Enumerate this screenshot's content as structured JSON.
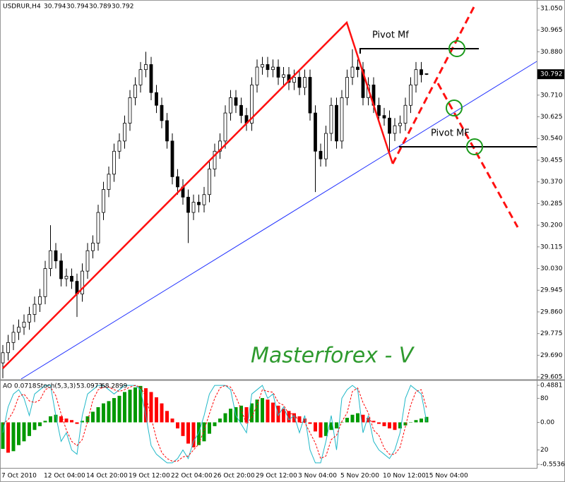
{
  "chart_data": [
    {
      "type": "candlestick",
      "title": "USDRUR,H4",
      "categories": [
        "7 Oct 2010",
        null,
        null,
        null,
        null,
        null,
        null,
        null,
        "12 Oct 04:00",
        null,
        null,
        null,
        null,
        null,
        null,
        null,
        "14 Oct 20:00",
        null,
        null,
        null,
        null,
        null,
        null,
        null,
        "19 Oct 12:00",
        null,
        null,
        null,
        null,
        null,
        null,
        null,
        "22 Oct 04:00",
        null,
        null,
        null,
        null,
        null,
        null,
        null,
        "26 Oct 20:00",
        null,
        null,
        null,
        null,
        null,
        null,
        null,
        "29 Oct 12:00",
        null,
        null,
        null,
        null,
        null,
        null,
        null,
        "3 Nov 04:00",
        null,
        null,
        null,
        null,
        null,
        null,
        null,
        "5 Nov 20:00",
        null,
        null,
        null,
        null,
        null,
        null,
        null,
        "10 Nov 12:00",
        null,
        null,
        null,
        null,
        null,
        null,
        null,
        "15 Nov 04:00"
      ],
      "open": [
        29.66,
        29.7,
        29.74,
        29.78,
        29.8,
        29.82,
        29.85,
        29.89,
        29.92,
        30.03,
        30.1,
        30.06,
        29.99,
        30.0,
        29.98,
        29.93,
        30.02,
        30.1,
        30.13,
        30.25,
        30.34,
        30.4,
        30.49,
        30.53,
        30.6,
        30.7,
        30.75,
        30.81,
        30.83,
        30.72,
        30.67,
        30.61,
        30.53,
        30.39,
        30.35,
        30.31,
        30.25,
        30.29,
        30.28,
        30.32,
        30.42,
        30.49,
        30.53,
        30.64,
        30.7,
        30.67,
        30.63,
        30.6,
        30.75,
        30.82,
        30.83,
        30.81,
        30.82,
        30.78,
        30.79,
        30.76,
        30.78,
        30.74,
        30.78,
        30.64,
        30.49,
        30.46,
        30.56,
        30.67,
        30.53,
        30.7,
        30.78,
        30.82,
        30.81,
        30.7,
        30.75,
        30.67,
        30.63,
        30.62,
        30.56,
        30.59,
        30.6,
        30.67,
        30.75,
        30.81,
        30.794
      ],
      "high": [
        29.73,
        29.77,
        29.81,
        29.83,
        29.85,
        29.88,
        29.92,
        29.95,
        30.06,
        30.2,
        30.13,
        30.09,
        30.03,
        30.03,
        30.01,
        30.05,
        30.13,
        30.16,
        30.28,
        30.37,
        30.43,
        30.52,
        30.56,
        30.63,
        30.73,
        30.78,
        30.84,
        30.88,
        30.86,
        30.75,
        30.7,
        30.64,
        30.56,
        30.42,
        30.38,
        30.34,
        30.32,
        30.32,
        30.35,
        30.45,
        30.52,
        30.56,
        30.67,
        30.73,
        30.73,
        30.7,
        30.66,
        30.78,
        30.85,
        30.86,
        30.86,
        30.85,
        30.85,
        30.82,
        30.82,
        30.81,
        30.81,
        30.81,
        30.81,
        30.67,
        30.52,
        30.59,
        30.7,
        30.7,
        30.73,
        30.81,
        30.89,
        30.85,
        30.84,
        30.78,
        30.78,
        30.7,
        30.66,
        30.65,
        30.62,
        30.63,
        30.7,
        30.78,
        30.84,
        30.84,
        30.794
      ],
      "low": [
        29.6,
        29.67,
        29.71,
        29.75,
        29.77,
        29.79,
        29.82,
        29.86,
        29.89,
        30.0,
        30.03,
        29.96,
        29.96,
        29.95,
        29.84,
        29.9,
        29.99,
        30.07,
        30.1,
        30.22,
        30.31,
        30.37,
        30.46,
        30.5,
        30.57,
        30.67,
        30.72,
        30.78,
        30.69,
        30.64,
        30.58,
        30.5,
        30.36,
        30.32,
        30.28,
        30.13,
        30.22,
        30.25,
        30.25,
        30.29,
        30.39,
        30.46,
        30.5,
        30.61,
        30.64,
        30.6,
        30.57,
        30.57,
        30.72,
        30.79,
        30.78,
        30.78,
        30.75,
        30.75,
        30.73,
        30.73,
        30.71,
        30.71,
        30.61,
        30.33,
        30.43,
        30.43,
        30.53,
        30.5,
        30.5,
        30.67,
        30.75,
        30.78,
        30.67,
        30.67,
        30.64,
        30.6,
        30.59,
        30.48,
        30.53,
        30.56,
        30.57,
        30.64,
        30.72,
        30.76,
        30.789
      ],
      "close": [
        29.7,
        29.74,
        29.78,
        29.8,
        29.82,
        29.85,
        29.89,
        29.92,
        30.03,
        30.1,
        30.06,
        29.99,
        30.0,
        29.98,
        29.93,
        30.02,
        30.1,
        30.13,
        30.25,
        30.34,
        30.4,
        30.49,
        30.53,
        30.6,
        30.7,
        30.75,
        30.81,
        30.83,
        30.72,
        30.67,
        30.61,
        30.53,
        30.39,
        30.35,
        30.31,
        30.25,
        30.29,
        30.28,
        30.32,
        30.42,
        30.49,
        30.53,
        30.64,
        30.7,
        30.67,
        30.63,
        30.6,
        30.75,
        30.82,
        30.83,
        30.81,
        30.82,
        30.78,
        30.79,
        30.76,
        30.78,
        30.74,
        30.78,
        30.64,
        30.49,
        30.46,
        30.56,
        30.67,
        30.53,
        30.7,
        30.78,
        30.82,
        30.81,
        30.7,
        30.75,
        30.67,
        30.63,
        30.62,
        30.56,
        30.59,
        30.6,
        30.67,
        30.75,
        30.81,
        30.79,
        30.792
      ],
      "ylim": [
        29.597,
        31.083
      ],
      "yticks": [
        {
          "value": 31.05,
          "label": "31.050"
        },
        30.965,
        {
          "value": 30.88,
          "label": "30.880"
        },
        {
          "value": 30.71,
          "label": "30.710"
        },
        30.625,
        {
          "value": 30.54,
          "label": "30.540"
        },
        30.455,
        {
          "value": 30.37,
          "label": "30.370"
        },
        30.285,
        {
          "value": 30.2,
          "label": "30.200"
        },
        30.115,
        {
          "value": 30.03,
          "label": "30.030"
        },
        29.945,
        {
          "value": 29.86,
          "label": "29.860"
        },
        29.775,
        {
          "value": 29.69,
          "label": "29.690"
        },
        29.605
      ],
      "annotations": [
        "Pivot Mf",
        "Pivot MF",
        "Masterforex - V"
      ]
    },
    {
      "type": "indicator",
      "ylim": [
        -0.591,
        0.544
      ],
      "yticks": [
        0.4881,
        {
          "value": 0,
          "label": "0.00"
        },
        -0.5536
      ],
      "y2lim": [
        0,
        100
      ],
      "y2ticks": [
        80,
        20
      ],
      "series": [
        {
          "name": "AO",
          "color": "#009900",
          "down_color": "#ff0000",
          "values": [
            -0.35,
            -0.4,
            -0.38,
            -0.3,
            -0.25,
            -0.18,
            -0.1,
            -0.05,
            0.02,
            0.08,
            0.1,
            0.08,
            0.05,
            0.03,
            -0.02,
            0.02,
            0.08,
            0.14,
            0.2,
            0.25,
            0.28,
            0.32,
            0.35,
            0.4,
            0.43,
            0.46,
            0.48,
            0.45,
            0.4,
            0.33,
            0.25,
            0.15,
            0.05,
            -0.08,
            -0.18,
            -0.28,
            -0.33,
            -0.3,
            -0.25,
            -0.15,
            -0.05,
            0.05,
            0.12,
            0.18,
            0.2,
            0.22,
            0.2,
            0.25,
            0.3,
            0.32,
            0.3,
            0.26,
            0.22,
            0.18,
            0.15,
            0.12,
            0.08,
            0.05,
            -0.02,
            -0.12,
            -0.2,
            -0.18,
            -0.1,
            -0.08,
            0.0,
            0.06,
            0.1,
            0.12,
            0.1,
            0.06,
            0.02,
            -0.02,
            -0.05,
            -0.08,
            -0.1,
            -0.08,
            -0.04,
            0.0,
            0.03,
            0.05,
            0.0718
          ]
        },
        {
          "name": "Stoch(5,3,3)",
          "color": "#20b8c8",
          "axis": "y2",
          "values": [
            40,
            70,
            85,
            90,
            80,
            60,
            85,
            90,
            95,
            95,
            60,
            30,
            40,
            20,
            15,
            60,
            85,
            90,
            95,
            95,
            90,
            85,
            90,
            95,
            95,
            95,
            90,
            60,
            25,
            15,
            10,
            5,
            5,
            10,
            20,
            10,
            30,
            40,
            60,
            85,
            95,
            95,
            95,
            90,
            60,
            50,
            40,
            85,
            90,
            95,
            80,
            85,
            60,
            70,
            55,
            60,
            40,
            60,
            20,
            5,
            5,
            30,
            60,
            20,
            80,
            90,
            95,
            90,
            40,
            60,
            30,
            20,
            15,
            10,
            20,
            40,
            80,
            95,
            90,
            85,
            53.0973
          ]
        },
        {
          "color": "#ff0000",
          "axis": "y2",
          "values": [
            50,
            55,
            65,
            82,
            85,
            77,
            75,
            78,
            90,
            93,
            83,
            62,
            43,
            30,
            25,
            32,
            53,
            78,
            90,
            93,
            93,
            90,
            88,
            90,
            93,
            95,
            93,
            82,
            58,
            33,
            17,
            10,
            7,
            7,
            12,
            13,
            20,
            27,
            43,
            62,
            80,
            92,
            95,
            93,
            82,
            67,
            50,
            58,
            72,
            90,
            88,
            87,
            75,
            72,
            62,
            62,
            52,
            52,
            40,
            28,
            10,
            13,
            32,
            37,
            53,
            63,
            88,
            92,
            75,
            63,
            43,
            37,
            22,
            15,
            15,
            23,
            47,
            72,
            88,
            90,
            68.2899
          ]
        }
      ]
    }
  ]
}
